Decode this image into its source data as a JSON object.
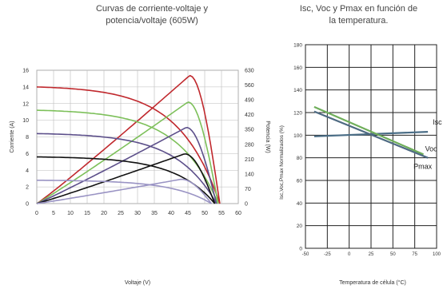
{
  "chart_data": [
    {
      "type": "line",
      "title": "Curvas de corriente-voltaje y potencia/voltaje (605W)",
      "title_lines": [
        "Curvas de corriente-voltaje y",
        "potencia/voltaje (605W)"
      ],
      "xlabel": "Voltaje (V)",
      "ylabel": "Corriente (A)",
      "y2label": "Potencia (W)",
      "xlim": [
        0,
        60
      ],
      "ylim": [
        0,
        16
      ],
      "y2lim": [
        0,
        630
      ],
      "xticks": [
        0,
        5,
        10,
        15,
        20,
        25,
        30,
        35,
        40,
        45,
        50,
        55,
        60
      ],
      "yticks": [
        0,
        2,
        4,
        6,
        8,
        10,
        12,
        14,
        16
      ],
      "y2ticks": [
        0,
        70,
        140,
        210,
        280,
        350,
        420,
        490,
        560,
        630
      ],
      "grid": true,
      "series": [
        {
          "color": "#c0282d",
          "isc": 14.0,
          "voc": 54.5,
          "vmp": 45.5,
          "imp": 13.3,
          "pmax": 605
        },
        {
          "color": "#7dc05a",
          "isc": 11.2,
          "voc": 54.0,
          "vmp": 45.0,
          "imp": 10.6,
          "pmax": 480
        },
        {
          "color": "#5c4f8a",
          "isc": 8.4,
          "voc": 53.5,
          "vmp": 44.5,
          "imp": 8.0,
          "pmax": 360
        },
        {
          "color": "#111111",
          "isc": 5.6,
          "voc": 53.0,
          "vmp": 44.0,
          "imp": 5.3,
          "pmax": 235
        },
        {
          "color": "#9a94c4",
          "isc": 2.8,
          "voc": 52.0,
          "vmp": 43.0,
          "imp": 2.6,
          "pmax": 115
        }
      ]
    },
    {
      "type": "line",
      "title": "Isc, Voc y Pmax en función de la temperatura.",
      "title_lines": [
        "Isc, Voc y Pmax en función de",
        "la temperatura."
      ],
      "xlabel": "Temperatura de célula (°C)",
      "ylabel": "Isc,Voc,Pmax Normalizados (%)",
      "xlim": [
        -50,
        100
      ],
      "ylim": [
        0,
        180
      ],
      "xticks": [
        -50,
        -25,
        0,
        25,
        50,
        75,
        100
      ],
      "yticks": [
        0,
        20,
        40,
        60,
        80,
        100,
        120,
        140,
        160,
        180
      ],
      "grid": true,
      "series": [
        {
          "name": "Isc",
          "color": "#4a6d86",
          "x": [
            -40,
            90
          ],
          "y": [
            99,
            103
          ]
        },
        {
          "name": "Voc",
          "color": "#6fae5a",
          "x": [
            -40,
            85
          ],
          "y": [
            125,
            83
          ]
        },
        {
          "name": "Pmax",
          "color": "#4e6a82",
          "x": [
            -40,
            90
          ],
          "y": [
            121,
            80
          ]
        }
      ]
    }
  ]
}
